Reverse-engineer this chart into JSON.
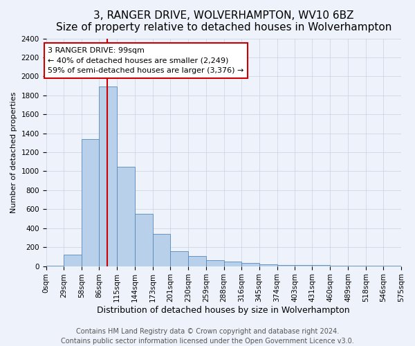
{
  "title": "3, RANGER DRIVE, WOLVERHAMPTON, WV10 6BZ",
  "subtitle": "Size of property relative to detached houses in Wolverhampton",
  "xlabel": "Distribution of detached houses by size in Wolverhampton",
  "ylabel": "Number of detached properties",
  "footer_line1": "Contains HM Land Registry data © Crown copyright and database right 2024.",
  "footer_line2": "Contains public sector information licensed under the Open Government Licence v3.0.",
  "bin_labels": [
    "0sqm",
    "29sqm",
    "58sqm",
    "86sqm",
    "115sqm",
    "144sqm",
    "173sqm",
    "201sqm",
    "230sqm",
    "259sqm",
    "288sqm",
    "316sqm",
    "345sqm",
    "374sqm",
    "403sqm",
    "431sqm",
    "460sqm",
    "489sqm",
    "518sqm",
    "546sqm",
    "575sqm"
  ],
  "bar_values": [
    5,
    120,
    1340,
    1890,
    1050,
    550,
    340,
    155,
    110,
    60,
    50,
    30,
    20,
    15,
    10,
    10,
    5,
    5,
    2,
    5
  ],
  "bin_edges": [
    0,
    29,
    58,
    86,
    115,
    144,
    173,
    201,
    230,
    259,
    288,
    316,
    345,
    374,
    403,
    431,
    460,
    489,
    518,
    546,
    575
  ],
  "bar_color": "#b8d0ea",
  "bar_edge_color": "#5588bb",
  "ylim": [
    0,
    2400
  ],
  "yticks": [
    0,
    200,
    400,
    600,
    800,
    1000,
    1200,
    1400,
    1600,
    1800,
    2000,
    2200,
    2400
  ],
  "vline_x": 99,
  "vline_color": "#cc0000",
  "annotation_title": "3 RANGER DRIVE: 99sqm",
  "annotation_line1": "← 40% of detached houses are smaller (2,249)",
  "annotation_line2": "59% of semi-detached houses are larger (3,376) →",
  "annotation_box_color": "#ffffff",
  "annotation_box_edge": "#cc0000",
  "background_color": "#eef2fb",
  "grid_color": "#c8d0e0",
  "title_fontsize": 11,
  "xlabel_fontsize": 9,
  "ylabel_fontsize": 8,
  "tick_fontsize": 7.5,
  "annotation_fontsize": 8,
  "footer_fontsize": 7
}
